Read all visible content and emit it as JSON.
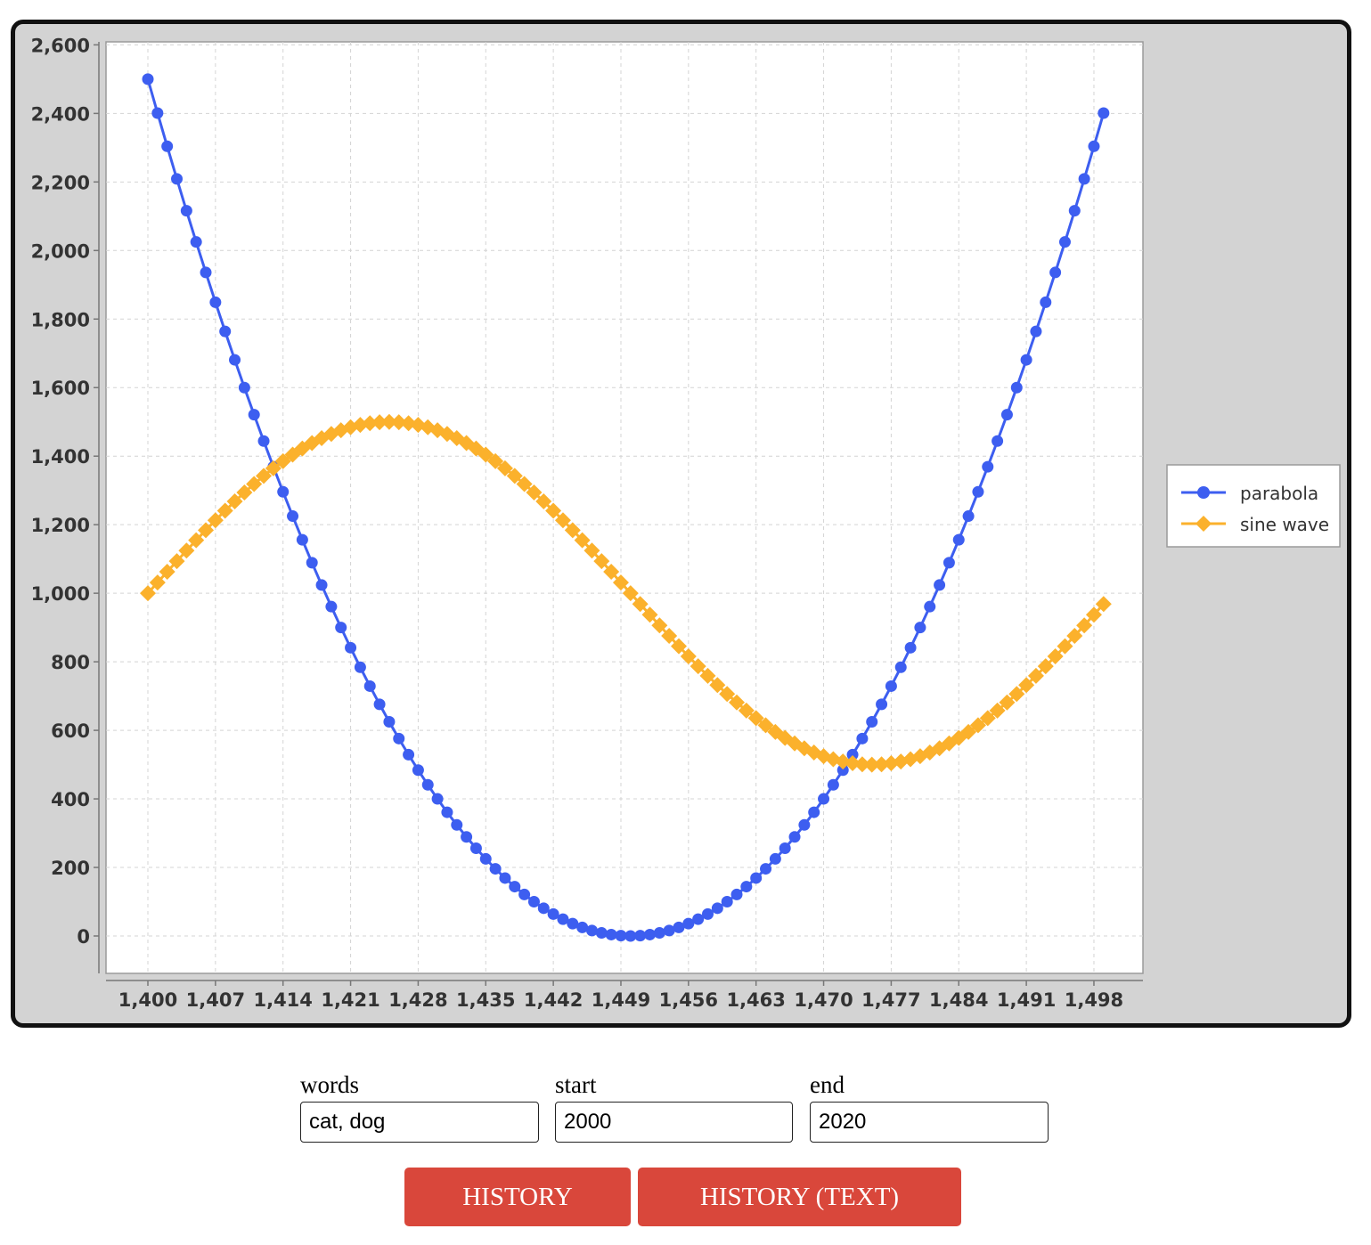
{
  "chart_data": {
    "type": "line",
    "xlim": [
      1400,
      1499
    ],
    "ylim": [
      -100,
      2600
    ],
    "x_ticks": [
      1400,
      1407,
      1414,
      1421,
      1428,
      1435,
      1442,
      1449,
      1456,
      1463,
      1470,
      1477,
      1484,
      1491,
      1498
    ],
    "y_ticks": [
      0,
      200,
      400,
      600,
      800,
      1000,
      1200,
      1400,
      1600,
      1800,
      2000,
      2200,
      2400,
      2600
    ],
    "grid": true,
    "legend_position": "right",
    "x_start": 1400,
    "x_end": 1499,
    "x_step": 1,
    "series": [
      {
        "name": "parabola",
        "color": "#3d5ef0",
        "marker": "circle",
        "formula": "(x - 1450)^2",
        "samples": [
          {
            "x": 1400,
            "y": 2500
          },
          {
            "x": 1414,
            "y": 1296
          },
          {
            "x": 1428,
            "y": 484
          },
          {
            "x": 1449,
            "y": 1
          },
          {
            "x": 1450,
            "y": 0
          },
          {
            "x": 1470,
            "y": 400
          },
          {
            "x": 1484,
            "y": 1156
          },
          {
            "x": 1499,
            "y": 2401
          }
        ]
      },
      {
        "name": "sine wave",
        "color": "#fbb12c",
        "marker": "diamond",
        "formula": "1000 + 500 * sin(2π (x - 1400) / 100)",
        "samples": [
          {
            "x": 1400,
            "y": 1000
          },
          {
            "x": 1414,
            "y": 1385
          },
          {
            "x": 1425,
            "y": 1500
          },
          {
            "x": 1442,
            "y": 1241
          },
          {
            "x": 1450,
            "y": 1000
          },
          {
            "x": 1463,
            "y": 646
          },
          {
            "x": 1475,
            "y": 500
          },
          {
            "x": 1499,
            "y": 969
          }
        ]
      }
    ]
  },
  "form": {
    "words_label": "words",
    "words_value": "cat, dog",
    "start_label": "start",
    "start_value": "2000",
    "end_label": "end",
    "end_value": "2020"
  },
  "buttons": {
    "history_label": "HISTORY",
    "history_text_label": "HISTORY (TEXT)"
  }
}
